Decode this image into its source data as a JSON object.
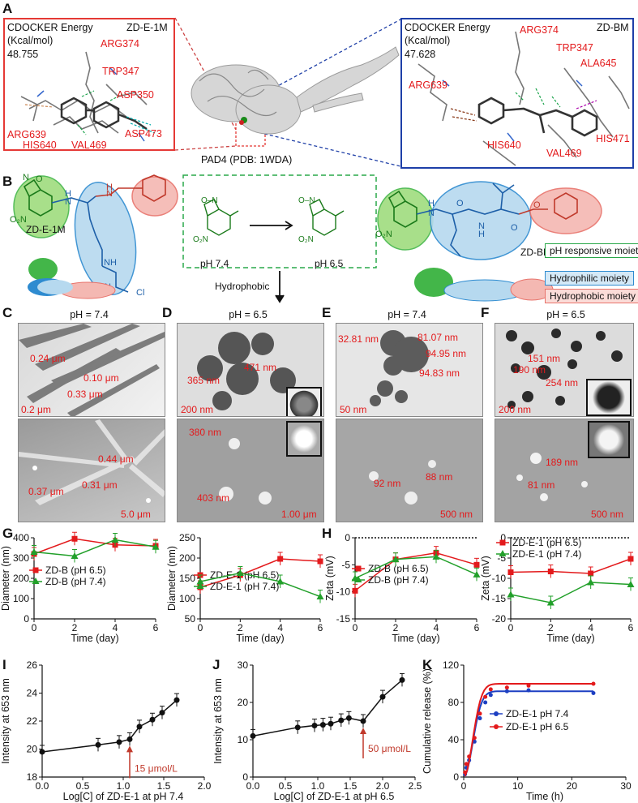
{
  "panels": {
    "A": "A",
    "B": "B",
    "C": "C",
    "D": "D",
    "E": "E",
    "F": "F",
    "G": "G",
    "H": "H",
    "I": "I",
    "J": "J",
    "K": "K"
  },
  "panel_a": {
    "left_box": {
      "energy_label": "CDOCKER Energy",
      "unit": "(Kcal/mol)",
      "value": "48.755",
      "compound": "ZD-E-1M",
      "residues": [
        "ARG374",
        "TRP347",
        "ASP350",
        "ARG639",
        "HIS640",
        "VAL469",
        "ASP473"
      ]
    },
    "center_label": "PAD4 (PDB: 1WDA)",
    "right_box": {
      "energy_label": "CDOCKER Energy",
      "unit": "(Kcal/mol)",
      "value": "47.628",
      "compound": "ZD-BM",
      "residues": [
        "ARG374",
        "TRP347",
        "ALA645",
        "ARG639",
        "HIS471",
        "HIS640",
        "VAL469"
      ]
    }
  },
  "panel_b": {
    "left_compound": "ZD-E-1M",
    "right_compound": "ZD-BM",
    "ph_left": "pH 7.4",
    "ph_right": "pH 6.5",
    "hydrophobic": "Hydrophobic",
    "legend": {
      "ph": "pH responsive moiety",
      "hydrophilic": "Hydrophilic moiety",
      "hydrophobic": "Hydrophobic moiety"
    },
    "colors": {
      "green": "#43b649",
      "blue": "#2e8bd0",
      "red": "#e8736b"
    }
  },
  "tem": {
    "C": {
      "title": "pH = 7.4",
      "top_labels": [
        "0.24 μm",
        "0.10 μm",
        "0.33 μm"
      ],
      "top_scale": "0.2 μm",
      "bottom_labels": [
        "0.44 μm",
        "0.37 μm",
        "0.31 μm"
      ],
      "bottom_scale": "5.0 μm"
    },
    "D": {
      "title": "pH = 6.5",
      "top_labels": [
        "365 nm",
        "471 nm"
      ],
      "top_scale": "200 nm",
      "bottom_labels": [
        "380 nm",
        "403 nm"
      ],
      "bottom_scale": "1.00 μm"
    },
    "E": {
      "title": "pH = 7.4",
      "top_labels": [
        "32.81 nm",
        "81.07 nm",
        "94.95 nm",
        "94.83 nm"
      ],
      "top_scale": "50 nm",
      "bottom_labels": [
        "92 nm",
        "88 nm"
      ],
      "bottom_scale": "500 nm"
    },
    "F": {
      "title": "pH = 6.5",
      "top_labels": [
        "151 nm",
        "190 nm",
        "254 nm"
      ],
      "top_scale": "200 nm",
      "bottom_labels": [
        "189 nm",
        "81 nm"
      ],
      "bottom_scale": "500 nm"
    }
  },
  "chart_data": [
    {
      "id": "G1",
      "type": "line",
      "xlabel": "Time (day)",
      "ylabel": "Diameter (nm)",
      "xlim": [
        0,
        6
      ],
      "ylim": [
        0,
        400
      ],
      "xticks": [
        "0",
        "2",
        "4",
        "6"
      ],
      "yticks": [
        "0",
        "100",
        "200",
        "300",
        "400"
      ],
      "series": [
        {
          "name": "ZD-B (pH 6.5)",
          "color": "#e31a1c",
          "marker": "square",
          "x": [
            0,
            2,
            4,
            6
          ],
          "y": [
            320,
            395,
            365,
            360
          ]
        },
        {
          "name": "ZD-B (pH 7.4)",
          "color": "#22a02a",
          "marker": "triangle",
          "x": [
            0,
            2,
            4,
            6
          ],
          "y": [
            330,
            310,
            390,
            355
          ]
        }
      ]
    },
    {
      "id": "G2",
      "type": "line",
      "xlabel": "Time (day)",
      "ylabel": "Diameter (nm)",
      "xlim": [
        0,
        6
      ],
      "ylim": [
        50,
        250
      ],
      "xticks": [
        "0",
        "2",
        "4",
        "6"
      ],
      "yticks": [
        "50",
        "100",
        "150",
        "200",
        "250"
      ],
      "series": [
        {
          "name": "ZD-E-1 (pH 6.5)",
          "color": "#e31a1c",
          "marker": "square",
          "x": [
            0,
            2,
            4,
            6
          ],
          "y": [
            128,
            158,
            198,
            192
          ]
        },
        {
          "name": "ZD-E-1 (pH 7.4)",
          "color": "#22a02a",
          "marker": "triangle",
          "x": [
            0,
            2,
            4,
            6
          ],
          "y": [
            142,
            163,
            142,
            105
          ]
        }
      ]
    },
    {
      "id": "H1",
      "type": "line",
      "xlabel": "Time (day)",
      "ylabel": "Zeta (mV)",
      "xlim": [
        0,
        6
      ],
      "ylim": [
        -15,
        0
      ],
      "xticks": [
        "0",
        "2",
        "4",
        "6"
      ],
      "yticks": [
        "0",
        "-5",
        "-10",
        "-15"
      ],
      "series": [
        {
          "name": "ZD-B (pH 6.5)",
          "color": "#e31a1c",
          "marker": "square",
          "x": [
            0,
            2,
            4,
            6
          ],
          "y": [
            -9.8,
            -4,
            -2.8,
            -5
          ]
        },
        {
          "name": "ZD-B (pH 7.4)",
          "color": "#22a02a",
          "marker": "triangle",
          "x": [
            0,
            2,
            4,
            6
          ],
          "y": [
            -7.5,
            -4,
            -3.5,
            -6.8
          ]
        }
      ]
    },
    {
      "id": "H2",
      "type": "line",
      "xlabel": "Time (day)",
      "ylabel": "Zeta (mV)",
      "xlim": [
        0,
        6
      ],
      "ylim": [
        -20,
        0
      ],
      "xticks": [
        "0",
        "2",
        "4",
        "6"
      ],
      "yticks": [
        "0",
        "-5",
        "-10",
        "-15",
        "-20"
      ],
      "series": [
        {
          "name": "ZD-E-1 (pH 6.5)",
          "color": "#e31a1c",
          "marker": "square",
          "x": [
            0,
            2,
            4,
            6
          ],
          "y": [
            -8.5,
            -8.3,
            -8.8,
            -5.2
          ]
        },
        {
          "name": "ZD-E-1 (pH 7.4)",
          "color": "#22a02a",
          "marker": "triangle",
          "x": [
            0,
            2,
            4,
            6
          ],
          "y": [
            -14,
            -16,
            -11,
            -11.5
          ]
        }
      ]
    },
    {
      "id": "I",
      "type": "line",
      "xlabel": "Log[C] of ZD-E-1 at pH 7.4",
      "ylabel": "Intensity at 653 nm",
      "xlim": [
        0,
        2
      ],
      "ylim": [
        18,
        26
      ],
      "xticks": [
        "0.0",
        "0.5",
        "1.0",
        "1.5",
        "2.0"
      ],
      "yticks": [
        "18",
        "20",
        "22",
        "24",
        "26"
      ],
      "annotation": "15 μmol/L",
      "series": [
        {
          "name": "",
          "color": "#111111",
          "marker": "circle",
          "x": [
            0,
            0.69,
            0.95,
            1.08,
            1.2,
            1.36,
            1.48,
            1.66
          ],
          "y": [
            19.8,
            20.3,
            20.5,
            20.7,
            21.6,
            22.1,
            22.6,
            23.5
          ]
        }
      ]
    },
    {
      "id": "J",
      "type": "line",
      "xlabel": "Log[C] of ZD-E-1 at pH 6.5",
      "ylabel": "Intensity at 653 nm",
      "xlim": [
        0,
        2.5
      ],
      "ylim": [
        0,
        30
      ],
      "xticks": [
        "0.0",
        "0.5",
        "1.0",
        "1.5",
        "2.0",
        "2.5"
      ],
      "yticks": [
        "0",
        "10",
        "20",
        "30"
      ],
      "annotation": "50 μmol/L",
      "series": [
        {
          "name": "",
          "color": "#111111",
          "marker": "circle",
          "x": [
            0,
            0.69,
            0.95,
            1.08,
            1.2,
            1.36,
            1.48,
            1.7,
            2.0,
            2.3
          ],
          "y": [
            11,
            13.3,
            13.8,
            14,
            14.3,
            15.2,
            15.8,
            15,
            21.5,
            26
          ]
        }
      ]
    },
    {
      "id": "K",
      "type": "line",
      "xlabel": "Time (h)",
      "ylabel": "Cumulative release (%)",
      "xlim": [
        0,
        30
      ],
      "ylim": [
        0,
        120
      ],
      "xticks": [
        "0",
        "10",
        "20",
        "30"
      ],
      "yticks": [
        "0",
        "40",
        "80",
        "120"
      ],
      "series": [
        {
          "name": "ZD-E-1 pH 7.4",
          "color": "#1d3fc2",
          "marker": "circle",
          "x": [
            0.25,
            0.5,
            1,
            2,
            3,
            4,
            5,
            8,
            12,
            24
          ],
          "y": [
            3,
            10,
            18,
            38,
            63,
            80,
            88,
            92,
            93,
            90
          ]
        },
        {
          "name": "ZD-E-1 pH 6.5",
          "color": "#e31a1c",
          "marker": "circle",
          "x": [
            0.25,
            0.5,
            1,
            2,
            3,
            4,
            5,
            8,
            12,
            24
          ],
          "y": [
            5,
            14,
            22,
            42,
            68,
            86,
            94,
            96,
            98,
            100
          ]
        }
      ]
    }
  ]
}
